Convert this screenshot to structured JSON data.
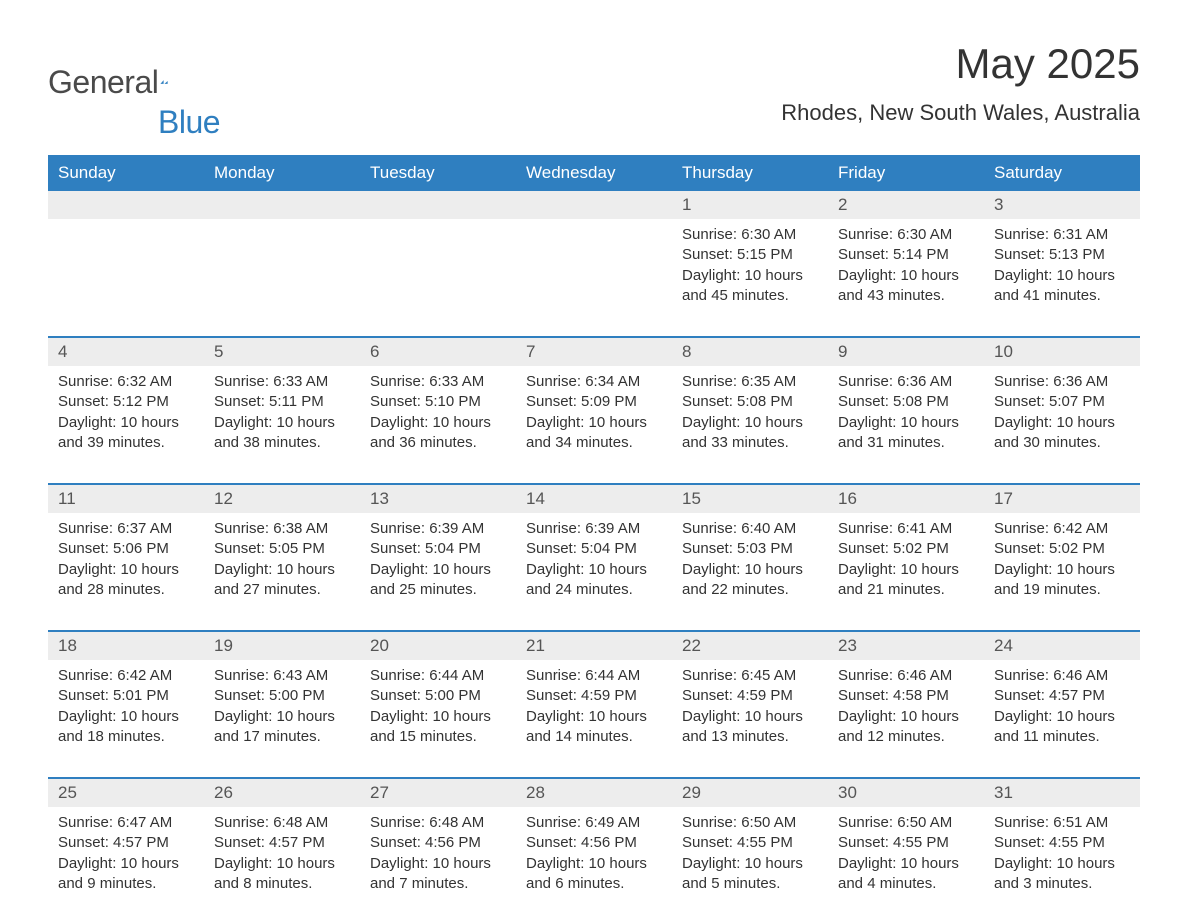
{
  "brand": {
    "part1": "General",
    "part2": "Blue",
    "icon_color": "#2f7fc0"
  },
  "page": {
    "title": "May 2025",
    "subtitle": "Rhodes, New South Wales, Australia"
  },
  "colors": {
    "header_bg": "#2f7fc0",
    "header_text": "#ffffff",
    "daynum_bg": "#ededed",
    "text": "#333333",
    "rule": "#2f7fc0",
    "background": "#ffffff"
  },
  "typography": {
    "family": "Arial",
    "title_size_pt": 32,
    "subtitle_size_pt": 17,
    "header_size_pt": 13,
    "body_size_pt": 11
  },
  "labels": {
    "sunrise": "Sunrise:",
    "sunset": "Sunset:",
    "daylight": "Daylight:"
  },
  "weekdays": [
    "Sunday",
    "Monday",
    "Tuesday",
    "Wednesday",
    "Thursday",
    "Friday",
    "Saturday"
  ],
  "weeks": [
    [
      {
        "empty": true
      },
      {
        "empty": true
      },
      {
        "empty": true
      },
      {
        "empty": true
      },
      {
        "day": "1",
        "sunrise": "6:30 AM",
        "sunset": "5:15 PM",
        "daylight": "10 hours and 45 minutes."
      },
      {
        "day": "2",
        "sunrise": "6:30 AM",
        "sunset": "5:14 PM",
        "daylight": "10 hours and 43 minutes."
      },
      {
        "day": "3",
        "sunrise": "6:31 AM",
        "sunset": "5:13 PM",
        "daylight": "10 hours and 41 minutes."
      }
    ],
    [
      {
        "day": "4",
        "sunrise": "6:32 AM",
        "sunset": "5:12 PM",
        "daylight": "10 hours and 39 minutes."
      },
      {
        "day": "5",
        "sunrise": "6:33 AM",
        "sunset": "5:11 PM",
        "daylight": "10 hours and 38 minutes."
      },
      {
        "day": "6",
        "sunrise": "6:33 AM",
        "sunset": "5:10 PM",
        "daylight": "10 hours and 36 minutes."
      },
      {
        "day": "7",
        "sunrise": "6:34 AM",
        "sunset": "5:09 PM",
        "daylight": "10 hours and 34 minutes."
      },
      {
        "day": "8",
        "sunrise": "6:35 AM",
        "sunset": "5:08 PM",
        "daylight": "10 hours and 33 minutes."
      },
      {
        "day": "9",
        "sunrise": "6:36 AM",
        "sunset": "5:08 PM",
        "daylight": "10 hours and 31 minutes."
      },
      {
        "day": "10",
        "sunrise": "6:36 AM",
        "sunset": "5:07 PM",
        "daylight": "10 hours and 30 minutes."
      }
    ],
    [
      {
        "day": "11",
        "sunrise": "6:37 AM",
        "sunset": "5:06 PM",
        "daylight": "10 hours and 28 minutes."
      },
      {
        "day": "12",
        "sunrise": "6:38 AM",
        "sunset": "5:05 PM",
        "daylight": "10 hours and 27 minutes."
      },
      {
        "day": "13",
        "sunrise": "6:39 AM",
        "sunset": "5:04 PM",
        "daylight": "10 hours and 25 minutes."
      },
      {
        "day": "14",
        "sunrise": "6:39 AM",
        "sunset": "5:04 PM",
        "daylight": "10 hours and 24 minutes."
      },
      {
        "day": "15",
        "sunrise": "6:40 AM",
        "sunset": "5:03 PM",
        "daylight": "10 hours and 22 minutes."
      },
      {
        "day": "16",
        "sunrise": "6:41 AM",
        "sunset": "5:02 PM",
        "daylight": "10 hours and 21 minutes."
      },
      {
        "day": "17",
        "sunrise": "6:42 AM",
        "sunset": "5:02 PM",
        "daylight": "10 hours and 19 minutes."
      }
    ],
    [
      {
        "day": "18",
        "sunrise": "6:42 AM",
        "sunset": "5:01 PM",
        "daylight": "10 hours and 18 minutes."
      },
      {
        "day": "19",
        "sunrise": "6:43 AM",
        "sunset": "5:00 PM",
        "daylight": "10 hours and 17 minutes."
      },
      {
        "day": "20",
        "sunrise": "6:44 AM",
        "sunset": "5:00 PM",
        "daylight": "10 hours and 15 minutes."
      },
      {
        "day": "21",
        "sunrise": "6:44 AM",
        "sunset": "4:59 PM",
        "daylight": "10 hours and 14 minutes."
      },
      {
        "day": "22",
        "sunrise": "6:45 AM",
        "sunset": "4:59 PM",
        "daylight": "10 hours and 13 minutes."
      },
      {
        "day": "23",
        "sunrise": "6:46 AM",
        "sunset": "4:58 PM",
        "daylight": "10 hours and 12 minutes."
      },
      {
        "day": "24",
        "sunrise": "6:46 AM",
        "sunset": "4:57 PM",
        "daylight": "10 hours and 11 minutes."
      }
    ],
    [
      {
        "day": "25",
        "sunrise": "6:47 AM",
        "sunset": "4:57 PM",
        "daylight": "10 hours and 9 minutes."
      },
      {
        "day": "26",
        "sunrise": "6:48 AM",
        "sunset": "4:57 PM",
        "daylight": "10 hours and 8 minutes."
      },
      {
        "day": "27",
        "sunrise": "6:48 AM",
        "sunset": "4:56 PM",
        "daylight": "10 hours and 7 minutes."
      },
      {
        "day": "28",
        "sunrise": "6:49 AM",
        "sunset": "4:56 PM",
        "daylight": "10 hours and 6 minutes."
      },
      {
        "day": "29",
        "sunrise": "6:50 AM",
        "sunset": "4:55 PM",
        "daylight": "10 hours and 5 minutes."
      },
      {
        "day": "30",
        "sunrise": "6:50 AM",
        "sunset": "4:55 PM",
        "daylight": "10 hours and 4 minutes."
      },
      {
        "day": "31",
        "sunrise": "6:51 AM",
        "sunset": "4:55 PM",
        "daylight": "10 hours and 3 minutes."
      }
    ]
  ]
}
